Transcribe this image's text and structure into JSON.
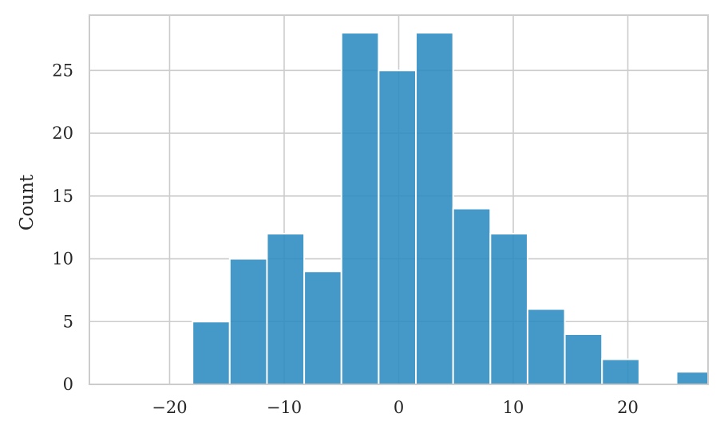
{
  "chart_data": {
    "type": "bar",
    "subtype": "histogram",
    "title": "",
    "xlabel": "",
    "ylabel": "Count",
    "bar_color": "#2a8bc2",
    "grid": true,
    "xlim": [
      -27,
      27
    ],
    "ylim": [
      0,
      29.4
    ],
    "x_ticks": [
      {
        "value": -20,
        "label": "−20"
      },
      {
        "value": -10,
        "label": "−10"
      },
      {
        "value": 0,
        "label": "0"
      },
      {
        "value": 10,
        "label": "10"
      },
      {
        "value": 20,
        "label": "20"
      }
    ],
    "y_ticks": [
      {
        "value": 0,
        "label": "0"
      },
      {
        "value": 5,
        "label": "5"
      },
      {
        "value": 10,
        "label": "10"
      },
      {
        "value": 15,
        "label": "15"
      },
      {
        "value": 20,
        "label": "20"
      },
      {
        "value": 25,
        "label": "25"
      }
    ],
    "bins": [
      {
        "x0": -18.0,
        "x1": -14.75,
        "count": 5
      },
      {
        "x0": -14.75,
        "x1": -11.5,
        "count": 10
      },
      {
        "x0": -11.5,
        "x1": -8.25,
        "count": 12
      },
      {
        "x0": -8.25,
        "x1": -5.0,
        "count": 9
      },
      {
        "x0": -5.0,
        "x1": -1.75,
        "count": 28
      },
      {
        "x0": -1.75,
        "x1": 1.5,
        "count": 25
      },
      {
        "x0": 1.5,
        "x1": 4.75,
        "count": 28
      },
      {
        "x0": 4.75,
        "x1": 8.0,
        "count": 14
      },
      {
        "x0": 8.0,
        "x1": 11.25,
        "count": 12
      },
      {
        "x0": 11.25,
        "x1": 14.5,
        "count": 6
      },
      {
        "x0": 14.5,
        "x1": 17.75,
        "count": 4
      },
      {
        "x0": 17.75,
        "x1": 21.0,
        "count": 2
      },
      {
        "x0": 21.0,
        "x1": 24.25,
        "count": 0
      },
      {
        "x0": 24.25,
        "x1": 27.5,
        "count": 1
      }
    ]
  }
}
